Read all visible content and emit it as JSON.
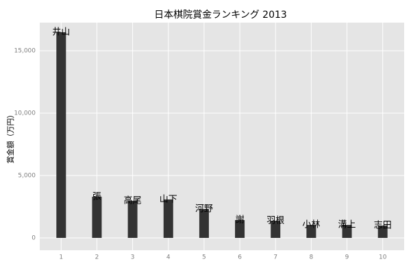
{
  "chart_data": {
    "type": "bar",
    "title": "日本棋院賞金ランキング 2013",
    "y_label": "賞金額（万円）",
    "categories": [
      "1",
      "2",
      "3",
      "4",
      "5",
      "6",
      "7",
      "8",
      "9",
      "10"
    ],
    "values": [
      16480,
      3300,
      2970,
      3080,
      2310,
      1430,
      1370,
      1040,
      1040,
      990
    ],
    "labels": [
      "井山",
      "張",
      "高尾",
      "山下",
      "河野",
      "謝",
      "羽根",
      "小林",
      "溝上",
      "志田"
    ],
    "color": "#333333",
    "ylim": [
      -990,
      17250
    ],
    "yticks": [
      0,
      {
        "value": 5000,
        "label": "5,000"
      },
      {
        "value": 10000,
        "label": "10,000"
      },
      {
        "value": 15000,
        "label": "15,000"
      }
    ],
    "grid": true
  }
}
